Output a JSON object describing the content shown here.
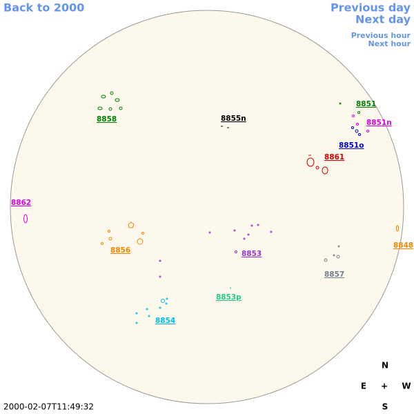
{
  "nav": {
    "back": "Back to 2000",
    "previous_day": "Previous day",
    "next_day": "Next day",
    "previous_hour": "Previous hour",
    "next_hour": "Next hour"
  },
  "regions": [
    {
      "label": "8851",
      "color": "#008000"
    },
    {
      "label": "8851n",
      "color": "#e000e0"
    },
    {
      "label": "8851o",
      "color": "#0000d0"
    },
    {
      "label": "8861",
      "color": "#d00000"
    },
    {
      "label": "8855n",
      "color": "#000000"
    },
    {
      "label": "8858",
      "color": "#008000"
    },
    {
      "label": "8862",
      "color": "#e000e0"
    },
    {
      "label": "8848",
      "color": "#ee8800"
    },
    {
      "label": "8856",
      "color": "#ee8800"
    },
    {
      "label": "8853",
      "color": "#9932cc"
    },
    {
      "label": "8857",
      "color": "#708090"
    },
    {
      "label": "8853p",
      "color": "#22cc88"
    },
    {
      "label": "8854",
      "color": "#00bbee"
    }
  ],
  "compass": {
    "north": "N",
    "east": "E",
    "center": "+",
    "west": "W",
    "south": "S"
  },
  "timestamp": "2000-02-07T11:49:32"
}
